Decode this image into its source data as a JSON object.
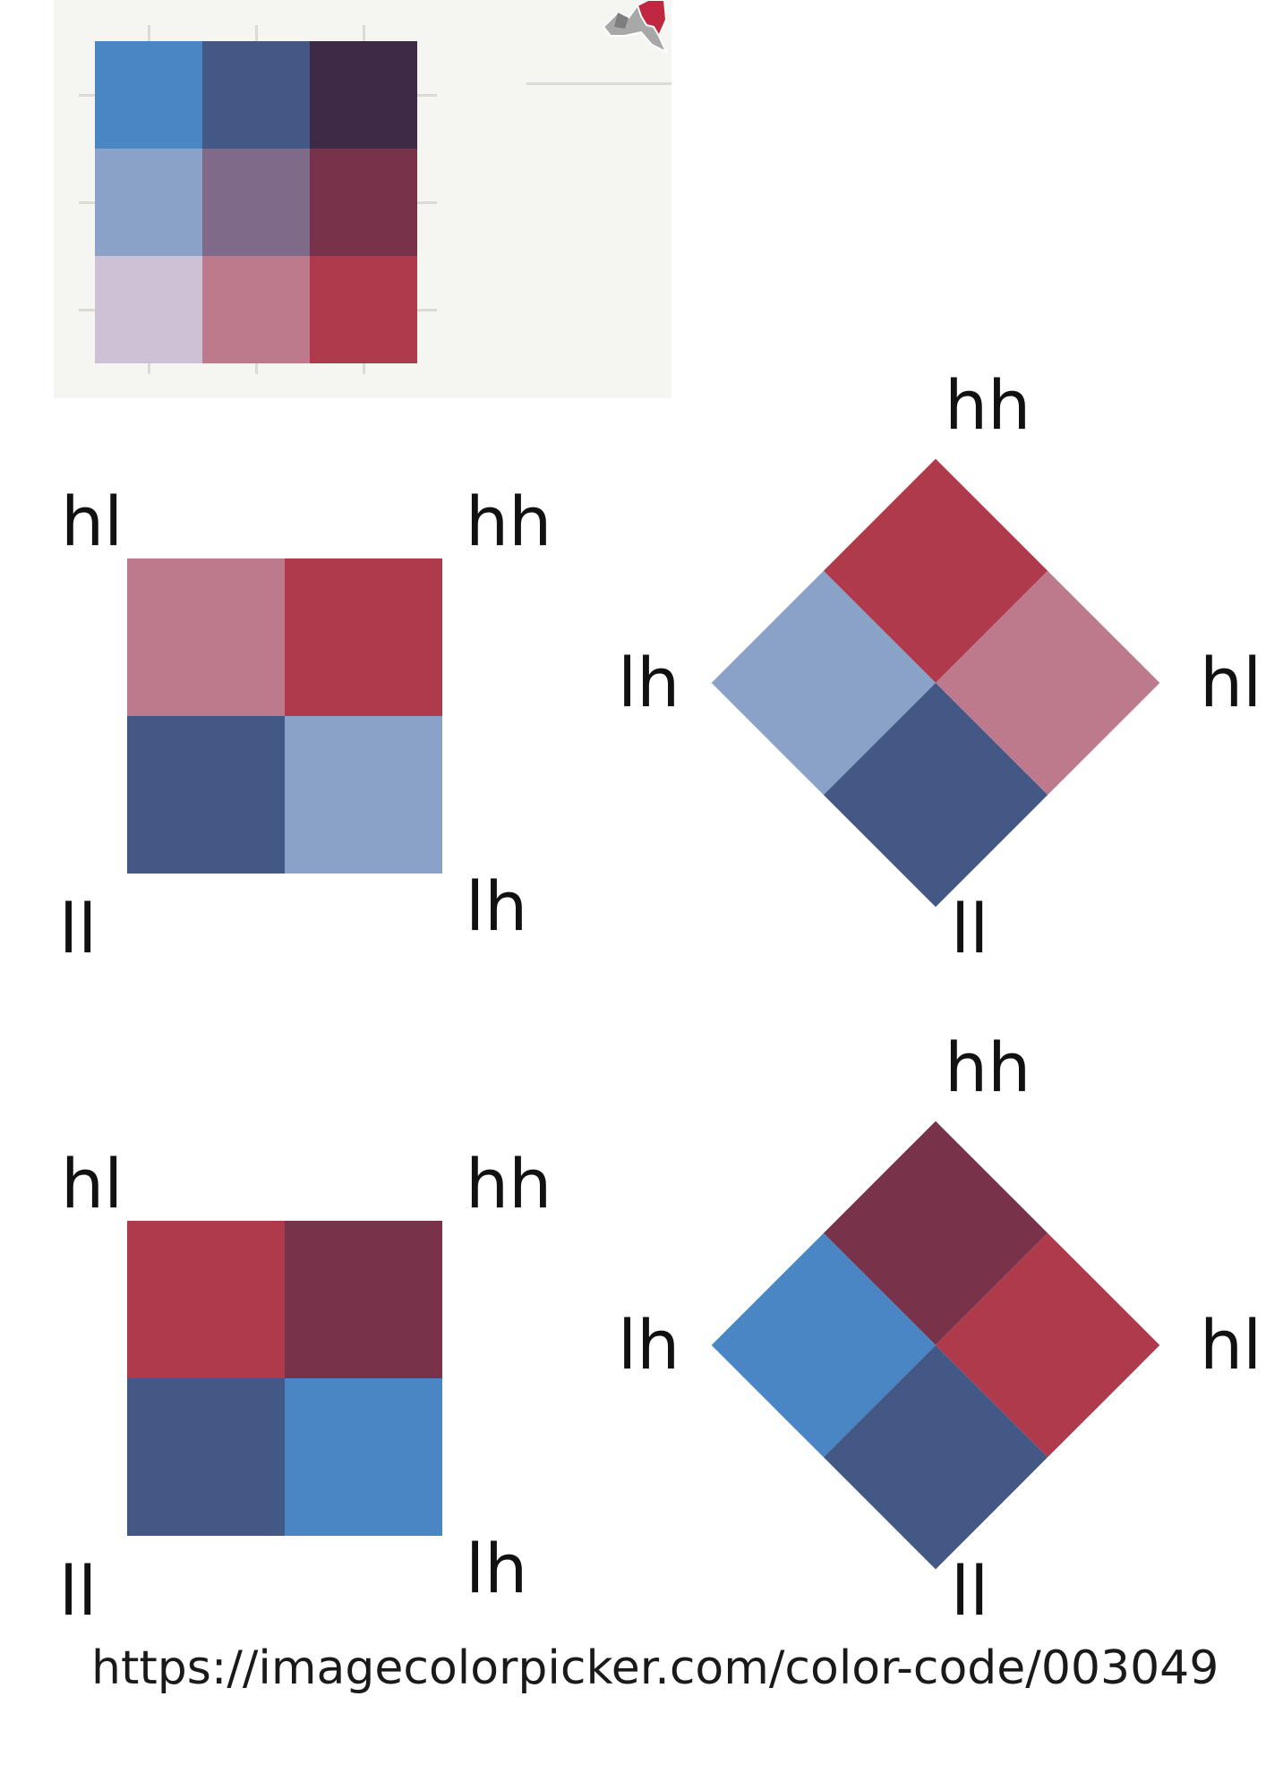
{
  "bivariate_legend": {
    "rows": [
      [
        "#4a86c4",
        "#435885",
        "#3e2a47"
      ],
      [
        "#8aa2c8",
        "#7f6a8a",
        "#78324a"
      ],
      [
        "#cdc1d6",
        "#bc7a8c",
        "#ae3a4c"
      ]
    ],
    "background": "#f5f5f2"
  },
  "diagrams": [
    {
      "square": {
        "corner_labels": {
          "top_left": "hl",
          "top_right": "hh",
          "bottom_left": "ll",
          "bottom_right": "lh"
        },
        "cells": {
          "top_left": "#bc7a8c",
          "top_right": "#ae3a4c",
          "bottom_left": "#435885",
          "bottom_right": "#8aa2c8"
        }
      },
      "diamond": {
        "labels": {
          "top": "hh",
          "left": "lh",
          "right": "hl",
          "bottom": "ll"
        },
        "cells": {
          "top": "#ae3a4c",
          "left": "#8aa2c8",
          "right": "#bc7a8c",
          "bottom": "#435885"
        }
      }
    },
    {
      "square": {
        "corner_labels": {
          "top_left": "hl",
          "top_right": "hh",
          "bottom_left": "ll",
          "bottom_right": "lh"
        },
        "cells": {
          "top_left": "#ae3a4c",
          "top_right": "#78324a",
          "bottom_left": "#435885",
          "bottom_right": "#4a86c4"
        }
      },
      "diamond": {
        "labels": {
          "top": "hh",
          "left": "lh",
          "right": "hl",
          "bottom": "ll"
        },
        "cells": {
          "top": "#78324a",
          "left": "#4a86c4",
          "right": "#ae3a4c",
          "bottom": "#435885"
        }
      }
    }
  ],
  "footer": {
    "url": "https://imagecolorpicker.com/color-code/003049"
  }
}
